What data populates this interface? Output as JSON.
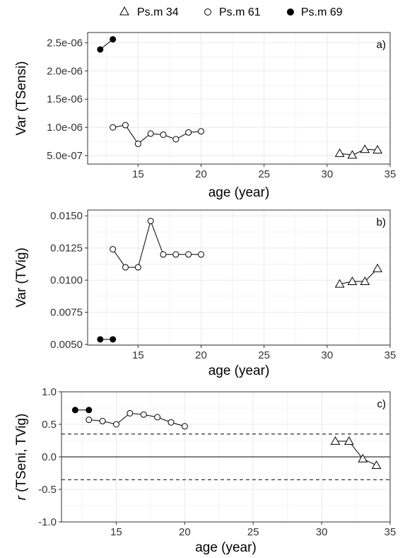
{
  "legend": {
    "position": "top",
    "items": [
      {
        "name": "Ps.m 34",
        "marker": "triangle-open"
      },
      {
        "name": "Ps.m 61",
        "marker": "circle-open"
      },
      {
        "name": "Ps.m 69",
        "marker": "circle-filled"
      }
    ]
  },
  "colors": {
    "line": "#000000",
    "grid": "#ebebeb",
    "panel_border": "#333333",
    "text": "#333333"
  },
  "chart_data": [
    {
      "type": "line",
      "panel_tag": "a)",
      "xlabel": "age (year)",
      "ylabel": "Var (TSensi)",
      "xlim": [
        11,
        35
      ],
      "ylim": [
        3.5e-07,
        2.68e-06
      ],
      "xticks": [
        15,
        20,
        25,
        30,
        35
      ],
      "yticks": [
        5e-07,
        1e-06,
        1.5e-06,
        2e-06,
        2.5e-06
      ],
      "ytick_labels": [
        "5.0e-07",
        "1.0e-06",
        "1.5e-06",
        "2.0e-06",
        "2.5e-06"
      ],
      "grid": true,
      "series": [
        {
          "name": "Ps.m 34",
          "marker": "triangle-open",
          "x": [
            31,
            32,
            33,
            34
          ],
          "y": [
            5.4e-07,
            5.1e-07,
            6.1e-07,
            6e-07
          ]
        },
        {
          "name": "Ps.m 61",
          "marker": "circle-open",
          "x": [
            13,
            14,
            15,
            16,
            17,
            18,
            19,
            20
          ],
          "y": [
            1e-06,
            1.04e-06,
            7.1e-07,
            8.9e-07,
            8.7e-07,
            7.9e-07,
            9.1e-07,
            9.3e-07
          ]
        },
        {
          "name": "Ps.m 69",
          "marker": "circle-filled",
          "x": [
            12,
            13
          ],
          "y": [
            2.38e-06,
            2.56e-06
          ]
        }
      ]
    },
    {
      "type": "line",
      "panel_tag": "b)",
      "xlabel": "age (year)",
      "ylabel": "Var (TVig)",
      "xlim": [
        11,
        35
      ],
      "ylim": [
        0.00495,
        0.01545
      ],
      "xticks": [
        15,
        20,
        25,
        30,
        35
      ],
      "yticks": [
        0.005,
        0.0075,
        0.01,
        0.0125,
        0.015
      ],
      "ytick_labels": [
        "0.0050",
        "0.0075",
        "0.0100",
        "0.0125",
        "0.0150"
      ],
      "grid": true,
      "series": [
        {
          "name": "Ps.m 34",
          "marker": "triangle-open",
          "x": [
            31,
            32,
            33,
            34
          ],
          "y": [
            0.0097,
            0.0099,
            0.0099,
            0.0109
          ]
        },
        {
          "name": "Ps.m 61",
          "marker": "circle-open",
          "x": [
            13,
            14,
            15,
            16,
            17,
            18,
            19,
            20
          ],
          "y": [
            0.0124,
            0.011,
            0.011,
            0.0146,
            0.012,
            0.012,
            0.012,
            0.012
          ]
        },
        {
          "name": "Ps.m 69",
          "marker": "circle-filled",
          "x": [
            12,
            13
          ],
          "y": [
            0.0054,
            0.0054
          ]
        }
      ]
    },
    {
      "type": "line",
      "panel_tag": "c)",
      "xlabel": "age (year)",
      "ylabel": "r (TSeni, TVig)",
      "xlim": [
        11,
        35
      ],
      "ylim": [
        -1,
        1
      ],
      "xticks": [
        15,
        20,
        25,
        30,
        35
      ],
      "yticks": [
        -1,
        -0.5,
        0,
        0.5,
        1
      ],
      "ytick_labels": [
        "-1.0",
        "-0.5",
        "0.0",
        "0.5",
        "1.0"
      ],
      "grid": true,
      "reference_lines": [
        {
          "y": 0,
          "style": "solid"
        },
        {
          "y": 0.35,
          "style": "dashed"
        },
        {
          "y": -0.35,
          "style": "dashed"
        }
      ],
      "series": [
        {
          "name": "Ps.m 34",
          "marker": "triangle-open",
          "x": [
            31,
            32,
            33,
            34
          ],
          "y": [
            0.24,
            0.24,
            -0.03,
            -0.13
          ]
        },
        {
          "name": "Ps.m 61",
          "marker": "circle-open",
          "x": [
            13,
            14,
            15,
            16,
            17,
            18,
            19,
            20
          ],
          "y": [
            0.57,
            0.55,
            0.5,
            0.67,
            0.65,
            0.61,
            0.53,
            0.47
          ]
        },
        {
          "name": "Ps.m 69",
          "marker": "circle-filled",
          "x": [
            12,
            13
          ],
          "y": [
            0.72,
            0.72
          ]
        }
      ]
    }
  ]
}
